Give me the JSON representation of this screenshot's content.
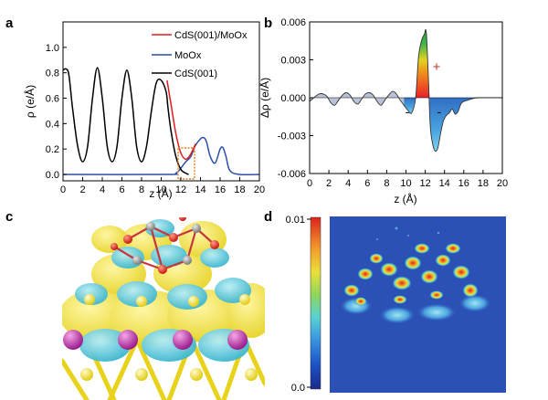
{
  "panels": {
    "a": "a",
    "b": "b",
    "c": "c",
    "d": "d"
  },
  "colors": {
    "interface": "#e31a1c",
    "moox": "#2c4fa8",
    "cds": "#000000",
    "highlight_box": "#e67e22",
    "iso_yellow": "#f2e33c",
    "iso_cyan": "#58c7d9"
  },
  "chart_data": [
    {
      "id": "a",
      "type": "line",
      "xlabel": "z (Å)",
      "ylabel": "ρ (e/Å)",
      "xlim": [
        0,
        20
      ],
      "ylim": [
        -0.05,
        1.2
      ],
      "xticks": [
        0,
        2,
        4,
        6,
        8,
        10,
        12,
        14,
        16,
        18,
        20
      ],
      "yticks": [
        0.0,
        0.2,
        0.4,
        0.6,
        0.8,
        1.0
      ],
      "legend_position": "top-right",
      "series": [
        {
          "name": "CdS(001)/MoOx",
          "color": "#e31a1c",
          "x": [
            10.6,
            11.0,
            11.5,
            12.0,
            12.5,
            13.0,
            13.5
          ],
          "y": [
            0.74,
            0.55,
            0.32,
            0.17,
            0.12,
            0.16,
            0.24
          ]
        },
        {
          "name": "MoOx",
          "color": "#2c4fa8",
          "x": [
            0,
            10.5,
            11.5,
            12.0,
            12.5,
            13.0,
            13.5,
            14.0,
            14.3,
            14.6,
            15.0,
            15.5,
            16.0,
            16.3,
            16.6,
            17.0,
            18.0,
            20.0
          ],
          "y": [
            0.0,
            0.0,
            0.01,
            0.05,
            0.1,
            0.14,
            0.23,
            0.28,
            0.29,
            0.26,
            0.14,
            0.09,
            0.2,
            0.21,
            0.14,
            0.03,
            0.0,
            0.0
          ]
        },
        {
          "name": "CdS(001)",
          "color": "#000000",
          "x": [
            0,
            0.3,
            0.6,
            1.0,
            1.5,
            2.0,
            2.5,
            3.0,
            3.5,
            4.0,
            4.5,
            5.0,
            5.5,
            6.0,
            6.5,
            7.0,
            7.5,
            8.0,
            8.5,
            9.0,
            9.5,
            10.0,
            10.5,
            10.7,
            11.0,
            11.5,
            12.0,
            12.5,
            12.8
          ],
          "y": [
            0.82,
            0.83,
            0.78,
            0.5,
            0.22,
            0.1,
            0.22,
            0.6,
            0.84,
            0.6,
            0.22,
            0.1,
            0.22,
            0.6,
            0.82,
            0.6,
            0.22,
            0.1,
            0.22,
            0.5,
            0.72,
            0.74,
            0.65,
            0.52,
            0.34,
            0.14,
            0.04,
            0.01,
            0.0
          ]
        }
      ]
    },
    {
      "id": "b",
      "type": "area",
      "xlabel": "z (Å)",
      "ylabel": "Δρ (e/Å)",
      "xlim": [
        0,
        20
      ],
      "ylim": [
        -0.006,
        0.006
      ],
      "xticks": [
        0,
        2,
        4,
        6,
        8,
        10,
        12,
        14,
        16,
        18,
        20
      ],
      "yticks": [
        -0.006,
        -0.003,
        0.0,
        0.003,
        0.006
      ],
      "ytick_labels": [
        "-0.006",
        "-0.003",
        "0.000",
        "0.003",
        "0.006"
      ],
      "annotations": [
        "+",
        "-",
        "-"
      ],
      "series": [
        {
          "name": "",
          "x": [
            0,
            0.3,
            0.6,
            1.0,
            1.4,
            1.8,
            2.2,
            2.6,
            3.0,
            3.4,
            3.8,
            4.2,
            4.6,
            5.0,
            5.4,
            5.8,
            6.2,
            6.6,
            7.0,
            7.4,
            7.8,
            8.2,
            8.6,
            9.0,
            9.4,
            9.8,
            10.2,
            10.6,
            11.0,
            11.3,
            11.6,
            11.9,
            12.1,
            12.3,
            12.5,
            12.7,
            13.0,
            13.3,
            13.6,
            13.9,
            14.2,
            14.5,
            14.8,
            15.1,
            15.4,
            15.7,
            16.0,
            16.4,
            16.8,
            17.5,
            20.0
          ],
          "y": [
            -0.0003,
            -0.0001,
            0.0001,
            0.0003,
            0.0003,
            0.0001,
            -0.0004,
            -0.0006,
            -0.0002,
            0.0002,
            0.0004,
            0.0002,
            -0.0003,
            -0.0005,
            -0.0001,
            0.0003,
            0.0004,
            0.0002,
            -0.0003,
            -0.0006,
            -0.0002,
            0.0002,
            0.0005,
            0.0003,
            -0.0002,
            -0.0006,
            -0.001,
            -0.0012,
            0.0,
            0.0032,
            0.0045,
            0.005,
            0.0052,
            0.002,
            -0.002,
            -0.0034,
            -0.0042,
            -0.004,
            -0.0028,
            -0.0018,
            -0.0014,
            -0.0012,
            -0.0009,
            -0.0013,
            -0.0011,
            -0.0005,
            -0.0003,
            -0.0002,
            -0.0001,
            0.0,
            0.0
          ]
        }
      ]
    },
    {
      "id": "d",
      "type": "heatmap",
      "colorbar_ticks": [
        "0.01",
        "0.0"
      ],
      "colorbar_range": [
        0.0,
        0.01
      ]
    }
  ]
}
